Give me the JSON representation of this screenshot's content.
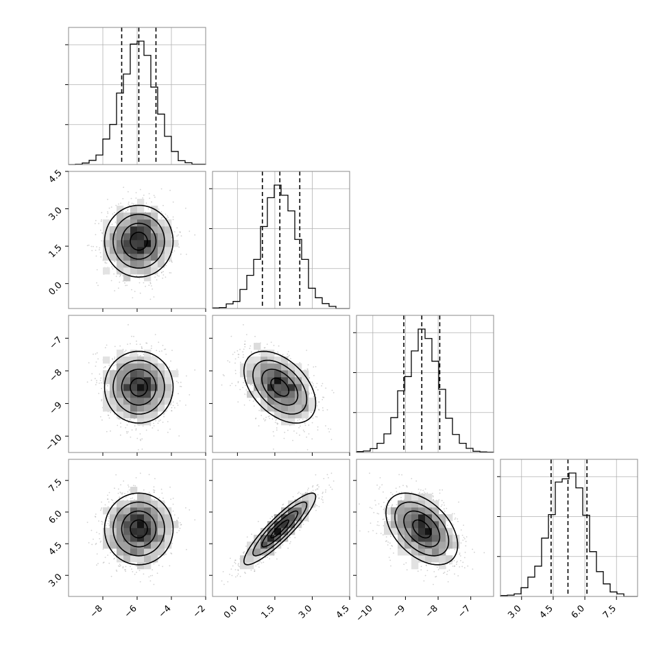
{
  "chart_data": {
    "type": "corner",
    "title": "",
    "params": [
      {
        "range": [
          -10,
          -2
        ],
        "xticks": [
          -8,
          -6,
          -4,
          -2
        ],
        "xtick_labels": [
          "−8",
          "−6",
          "−4",
          "−2"
        ],
        "quantiles": [
          -6.9,
          -5.9,
          -4.9
        ],
        "mean": -5.9,
        "sd": 1.0
      },
      {
        "range": [
          -1.0,
          4.5
        ],
        "xticks": [
          0.0,
          1.5,
          3.0,
          4.5
        ],
        "xtick_labels": [
          "0.0",
          "1.5",
          "3.0",
          "4.5"
        ],
        "yticks": [
          0.0,
          1.5,
          3.0,
          4.5
        ],
        "ytick_labels": [
          "0.0",
          "1.5",
          "3.0",
          "4.5"
        ],
        "quantiles": [
          1.0,
          1.7,
          2.5
        ],
        "mean": 1.7,
        "sd": 0.72
      },
      {
        "range": [
          -10.5,
          -6.3
        ],
        "xticks": [
          -10,
          -9,
          -8,
          -7
        ],
        "xtick_labels": [
          "−10",
          "−9",
          "−8",
          "−7"
        ],
        "yticks": [
          -10,
          -9,
          -8,
          -7
        ],
        "ytick_labels": [
          "−10",
          "−9",
          "−8",
          "−7"
        ],
        "quantiles": [
          -9.05,
          -8.5,
          -7.95
        ],
        "mean": -8.5,
        "sd": 0.55
      },
      {
        "range": [
          2.0,
          8.5
        ],
        "xticks": [
          3.0,
          4.5,
          6.0,
          7.5
        ],
        "xtick_labels": [
          "3.0",
          "4.5",
          "6.0",
          "7.5"
        ],
        "yticks": [
          3.0,
          4.5,
          6.0,
          7.5
        ],
        "ytick_labels": [
          "3.0",
          "4.5",
          "6.0",
          "7.5"
        ],
        "quantiles": [
          4.4,
          5.2,
          6.1
        ],
        "mean": 5.2,
        "sd": 0.85
      }
    ],
    "correlations": [
      {
        "row": 1,
        "col": 0,
        "r": 0.0
      },
      {
        "row": 2,
        "col": 0,
        "r": 0.0
      },
      {
        "row": 2,
        "col": 1,
        "r": -0.45
      },
      {
        "row": 3,
        "col": 0,
        "r": 0.0
      },
      {
        "row": 3,
        "col": 1,
        "r": 0.9
      },
      {
        "row": 3,
        "col": 2,
        "r": -0.45
      }
    ],
    "grid": true,
    "colors": {
      "line": "#000000",
      "grid": "#b0b0b0",
      "scatter": "#9a9a9a",
      "frame": "#000000"
    }
  }
}
